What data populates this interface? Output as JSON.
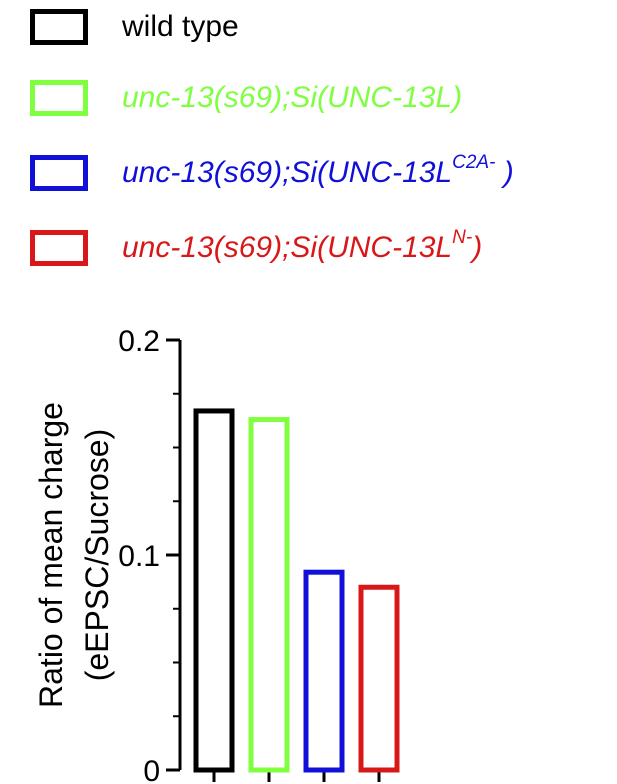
{
  "legend": {
    "items": [
      {
        "text": "wild type",
        "sup": "",
        "suffix": "",
        "color": "#000000",
        "italic": false
      },
      {
        "text": "unc-13(s69);Si(UNC-13L)",
        "sup": "",
        "suffix": "",
        "color": "#7fff3f",
        "italic": true
      },
      {
        "text": "unc-13(s69);Si(UNC-13L",
        "sup": "C2A-",
        "suffix": " )",
        "color": "#1010d8",
        "italic": true
      },
      {
        "text": "unc-13(s69);Si(UNC-13L",
        "sup": "N-",
        "suffix": ")",
        "color": "#d81818",
        "italic": true
      }
    ]
  },
  "chart_data": {
    "type": "bar",
    "title": "",
    "ylabel_line1": "Ratio of mean charge",
    "ylabel_line2": "(eEPSC/Sucrose)",
    "ylim": [
      0,
      0.2
    ],
    "yticks": [
      0,
      0.1,
      0.2
    ],
    "ytick_labels": [
      "0",
      "0.1",
      "0.2"
    ],
    "categories": [
      "wild type",
      "unc-13(s69);Si(UNC-13L)",
      "unc-13(s69);Si(UNC-13L C2A-)",
      "unc-13(s69);Si(UNC-13L N-)"
    ],
    "values": [
      0.167,
      0.163,
      0.092,
      0.085
    ],
    "colors": [
      "#000000",
      "#7fff3f",
      "#1010d8",
      "#d81818"
    ],
    "fill": "none",
    "grid": false
  }
}
